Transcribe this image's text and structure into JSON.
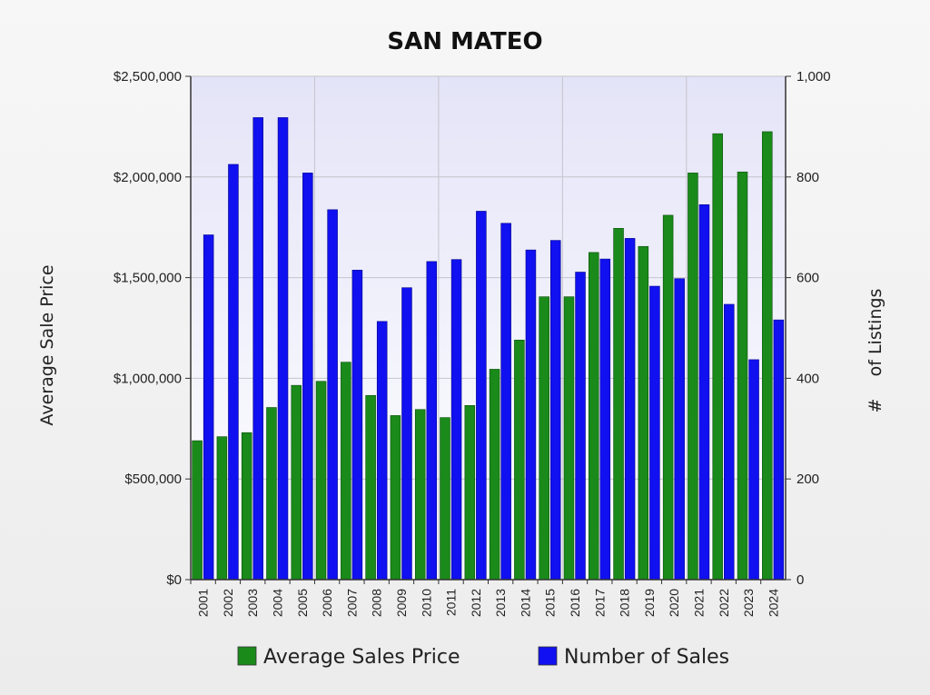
{
  "chart_data": {
    "type": "bar",
    "title": "SAN MATEO",
    "ylabel_left": "Average Sale Price",
    "ylabel_right": "#    of Listings",
    "categories": [
      "2001",
      "2002",
      "2003",
      "2004",
      "2005",
      "2006",
      "2007",
      "2008",
      "2009",
      "2010",
      "2011",
      "2012",
      "2013",
      "2014",
      "2015",
      "2016",
      "2017",
      "2018",
      "2019",
      "2020",
      "2021",
      "2022",
      "2023",
      "2024"
    ],
    "y_left": {
      "min": 0,
      "max": 2500000,
      "ticks": [
        0,
        500000,
        1000000,
        1500000,
        2000000,
        2500000
      ],
      "tick_labels": [
        "$0",
        "$500,000",
        "$1,000,000",
        "$1,500,000",
        "$2,000,000",
        "$2,500,000"
      ]
    },
    "y_right": {
      "min": 0,
      "max": 1000,
      "ticks": [
        0,
        200,
        400,
        600,
        800,
        1000
      ],
      "tick_labels": [
        "0",
        "200",
        "400",
        "600",
        "800",
        "1,000"
      ]
    },
    "grid": true,
    "legend_position": "bottom",
    "series": [
      {
        "name": "Average Sales Price",
        "axis": "left",
        "color": "#1a8a1a",
        "values": [
          690000,
          710000,
          730000,
          855000,
          965000,
          985000,
          1080000,
          915000,
          815000,
          845000,
          805000,
          865000,
          1045000,
          1190000,
          1405000,
          1405000,
          1625000,
          1745000,
          1655000,
          1810000,
          2020000,
          2215000,
          2025000,
          2225000
        ]
      },
      {
        "name": "Number of Sales",
        "axis": "right",
        "color": "#1010f0",
        "values": [
          685,
          825,
          918,
          918,
          808,
          735,
          615,
          513,
          580,
          632,
          636,
          732,
          708,
          655,
          674,
          611,
          637,
          678,
          583,
          598,
          745,
          547,
          437,
          516
        ]
      }
    ]
  }
}
